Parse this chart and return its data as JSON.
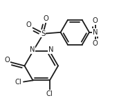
{
  "bg_color": "#ffffff",
  "line_color": "#1a1a1a",
  "line_width": 1.3,
  "font_size": 7.2,
  "figsize": [
    1.98,
    1.55
  ],
  "dpi": 100,
  "xlim": [
    0.0,
    5.5
  ],
  "ylim": [
    0.0,
    4.3
  ]
}
